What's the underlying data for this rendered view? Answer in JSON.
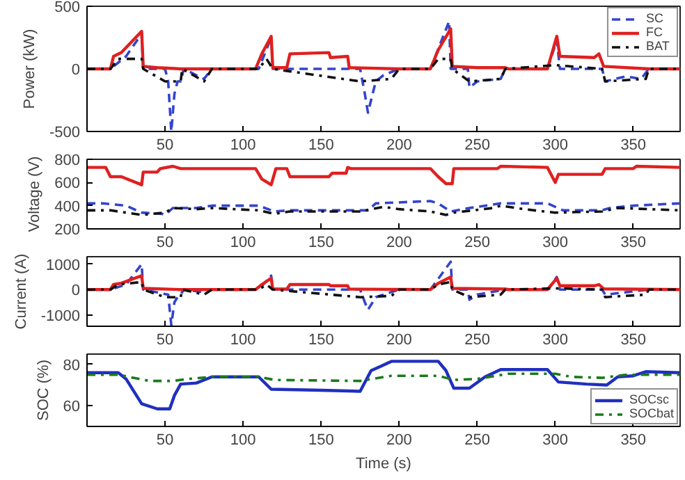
{
  "chart_data": [
    {
      "type": "line",
      "ylabel": "Power (kW)",
      "xlim": [
        0,
        380
      ],
      "xticks": [
        50,
        100,
        150,
        200,
        250,
        300,
        350
      ],
      "ylim": [
        -500,
        500
      ],
      "yticks": [
        -500,
        0,
        500
      ],
      "grid": false,
      "legend": "top right",
      "series": [
        {
          "name": "SC",
          "color": "#3344cc",
          "line_style": "dashed",
          "x": [
            0,
            15,
            25,
            35,
            36,
            50,
            52,
            54,
            56,
            58,
            60,
            62,
            70,
            75,
            80,
            110,
            118,
            119,
            175,
            178,
            180,
            185,
            190,
            200,
            220,
            232,
            233,
            244,
            245,
            250,
            265,
            268,
            295,
            301,
            303,
            330,
            332,
            345,
            355,
            360,
            380
          ],
          "values": [
            0,
            0,
            100,
            280,
            0,
            0,
            -100,
            -500,
            -200,
            -100,
            -100,
            0,
            -50,
            -80,
            0,
            0,
            250,
            0,
            0,
            -200,
            -350,
            -100,
            -50,
            0,
            0,
            380,
            0,
            0,
            -150,
            -100,
            -80,
            0,
            0,
            230,
            0,
            0,
            -100,
            -60,
            -80,
            0,
            0
          ]
        },
        {
          "name": "FC",
          "color": "#e02020",
          "line_style": "solid",
          "x": [
            0,
            15,
            17,
            22,
            35,
            36,
            45,
            60,
            108,
            112,
            118,
            119,
            128,
            130,
            155,
            156,
            167,
            168,
            200,
            220,
            225,
            233,
            234,
            250,
            268,
            270,
            295,
            301,
            303,
            325,
            328,
            331,
            360,
            380
          ],
          "values": [
            0,
            0,
            100,
            130,
            300,
            20,
            10,
            0,
            0,
            120,
            260,
            10,
            10,
            120,
            130,
            90,
            100,
            10,
            0,
            0,
            150,
            320,
            20,
            10,
            10,
            0,
            0,
            260,
            100,
            90,
            120,
            20,
            0,
            0
          ]
        },
        {
          "name": "BAT",
          "color": "#111111",
          "line_style": "dashdot",
          "x": [
            0,
            15,
            20,
            35,
            36,
            50,
            60,
            61,
            75,
            80,
            110,
            115,
            119,
            175,
            195,
            200,
            220,
            225,
            233,
            234,
            245,
            265,
            268,
            300,
            330,
            332,
            358,
            360,
            380
          ],
          "values": [
            0,
            0,
            80,
            80,
            0,
            -100,
            -100,
            0,
            -100,
            0,
            0,
            80,
            0,
            -100,
            -80,
            0,
            0,
            80,
            80,
            0,
            -100,
            -80,
            0,
            30,
            0,
            -100,
            -80,
            0,
            0
          ]
        }
      ]
    },
    {
      "type": "line",
      "ylabel": "Voltage (V)",
      "xlim": [
        0,
        380
      ],
      "xticks": [
        50,
        100,
        150,
        200,
        250,
        300,
        350
      ],
      "ylim": [
        200,
        800
      ],
      "yticks": [
        200,
        400,
        600,
        800
      ],
      "grid": false,
      "series": [
        {
          "color": "#3344cc",
          "line_style": "dashed",
          "x": [
            0,
            10,
            25,
            35,
            48,
            50,
            55,
            70,
            80,
            110,
            120,
            130,
            180,
            185,
            220,
            225,
            233,
            245,
            265,
            295,
            305,
            330,
            335,
            350,
            380
          ],
          "values": [
            420,
            420,
            400,
            340,
            330,
            320,
            380,
            380,
            400,
            400,
            350,
            360,
            360,
            420,
            440,
            420,
            350,
            380,
            420,
            420,
            360,
            360,
            380,
            400,
            420
          ]
        },
        {
          "color": "#e02020",
          "line_style": "solid",
          "x": [
            0,
            12,
            15,
            22,
            35,
            36,
            45,
            47,
            55,
            60,
            108,
            112,
            118,
            121,
            128,
            130,
            155,
            157,
            166,
            167,
            169,
            220,
            225,
            230,
            234,
            235,
            263,
            265,
            295,
            300,
            302,
            330,
            332,
            350,
            352,
            380
          ],
          "values": [
            730,
            730,
            650,
            650,
            580,
            690,
            690,
            720,
            740,
            720,
            720,
            630,
            580,
            720,
            720,
            650,
            650,
            680,
            680,
            730,
            720,
            720,
            650,
            590,
            590,
            720,
            720,
            740,
            730,
            600,
            670,
            670,
            720,
            720,
            740,
            730
          ]
        },
        {
          "color": "#111111",
          "line_style": "dashdot",
          "x": [
            0,
            15,
            25,
            35,
            50,
            55,
            70,
            80,
            110,
            120,
            130,
            175,
            190,
            200,
            220,
            230,
            235,
            260,
            265,
            280,
            300,
            330,
            340,
            380
          ],
          "values": [
            360,
            360,
            340,
            320,
            340,
            380,
            370,
            380,
            360,
            330,
            350,
            350,
            390,
            370,
            350,
            320,
            340,
            380,
            400,
            370,
            340,
            350,
            380,
            360
          ]
        }
      ]
    },
    {
      "type": "line",
      "ylabel": "Current (A)",
      "xlim": [
        0,
        380
      ],
      "xticks": [
        50,
        100,
        150,
        200,
        250,
        300,
        350
      ],
      "ylim": [
        -1450,
        1300
      ],
      "yticks": [
        -1000,
        0,
        1000
      ],
      "grid": false,
      "series": [
        {
          "color": "#3344cc",
          "line_style": "dashed",
          "x": [
            0,
            15,
            25,
            35,
            36,
            52,
            54,
            56,
            58,
            60,
            62,
            75,
            80,
            110,
            118,
            119,
            175,
            178,
            180,
            185,
            190,
            200,
            220,
            233,
            234,
            244,
            245,
            250,
            268,
            295,
            301,
            303,
            330,
            332,
            360,
            380
          ],
          "values": [
            0,
            0,
            200,
            1000,
            0,
            -200,
            -1400,
            -500,
            -300,
            -200,
            0,
            -100,
            0,
            0,
            550,
            0,
            0,
            -500,
            -800,
            -300,
            -200,
            0,
            0,
            1100,
            0,
            0,
            -400,
            -200,
            0,
            0,
            500,
            0,
            0,
            -200,
            0,
            0
          ]
        },
        {
          "color": "#e02020",
          "line_style": "solid",
          "x": [
            0,
            15,
            17,
            22,
            35,
            36,
            60,
            108,
            112,
            118,
            119,
            128,
            130,
            155,
            156,
            167,
            168,
            220,
            225,
            233,
            234,
            268,
            270,
            295,
            301,
            303,
            325,
            328,
            331,
            380
          ],
          "values": [
            0,
            0,
            200,
            250,
            550,
            50,
            0,
            0,
            200,
            450,
            20,
            20,
            200,
            200,
            150,
            150,
            20,
            0,
            250,
            500,
            50,
            20,
            0,
            0,
            450,
            150,
            150,
            200,
            30,
            0
          ]
        },
        {
          "color": "#111111",
          "line_style": "dashdot",
          "x": [
            0,
            15,
            20,
            35,
            36,
            50,
            60,
            61,
            75,
            80,
            110,
            115,
            119,
            175,
            195,
            200,
            220,
            225,
            233,
            234,
            245,
            265,
            268,
            300,
            330,
            332,
            358,
            360,
            380
          ],
          "values": [
            0,
            0,
            200,
            300,
            0,
            -300,
            -300,
            0,
            -200,
            0,
            0,
            200,
            0,
            -300,
            -250,
            0,
            0,
            200,
            300,
            0,
            -300,
            -200,
            0,
            50,
            0,
            -300,
            -200,
            0,
            0
          ]
        }
      ]
    },
    {
      "type": "line",
      "ylabel": "SOC (%)",
      "xlabel": "Time (s)",
      "xlim": [
        0,
        380
      ],
      "xticks": [
        50,
        100,
        150,
        200,
        250,
        300,
        350
      ],
      "ylim": [
        50,
        85
      ],
      "yticks": [
        60,
        80
      ],
      "grid": false,
      "legend": "bottom right",
      "series": [
        {
          "name": "SOCsc",
          "color": "#1f2fbf",
          "line_style": "solid",
          "x": [
            0,
            20,
            25,
            35,
            45,
            53,
            56,
            60,
            70,
            80,
            110,
            118,
            150,
            175,
            182,
            188,
            195,
            225,
            230,
            235,
            245,
            255,
            265,
            295,
            302,
            320,
            333,
            340,
            350,
            358,
            380
          ],
          "values": [
            76,
            76,
            73,
            61,
            58.5,
            58.5,
            65,
            70.5,
            71,
            74,
            74,
            68,
            67.5,
            67,
            77,
            79,
            81.5,
            81.5,
            77,
            68.5,
            68.5,
            74,
            77.5,
            77.5,
            71.5,
            70.5,
            70,
            74,
            74.5,
            76.5,
            76
          ]
        },
        {
          "name": "SOCbat",
          "color": "#1a7a1a",
          "line_style": "dashdot",
          "x": [
            0,
            20,
            40,
            55,
            65,
            80,
            110,
            120,
            175,
            195,
            225,
            235,
            250,
            270,
            300,
            310,
            330,
            345,
            380
          ],
          "values": [
            75,
            75,
            72,
            72,
            73,
            74,
            74,
            72.5,
            72,
            74.5,
            74.5,
            72.5,
            73,
            75.5,
            75.5,
            74,
            73.5,
            75,
            75
          ]
        }
      ]
    }
  ]
}
